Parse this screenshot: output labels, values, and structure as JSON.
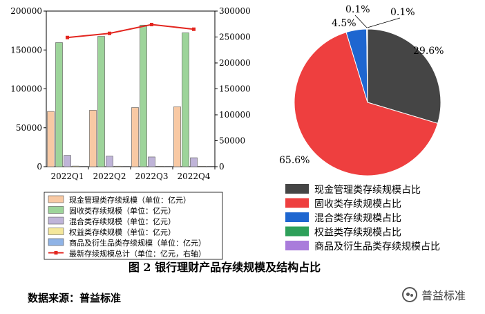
{
  "figure_caption": "图 2   银行理财产品存续规模及结构占比",
  "source_note": "数据来源：普益标准",
  "watermark": "普益标准",
  "chart_data": [
    {
      "type": "bar",
      "categories": [
        "2022Q1",
        "2022Q2",
        "2022Q3",
        "2022Q4"
      ],
      "ylim": [
        0,
        200000
      ],
      "yticks": [
        0,
        50000,
        100000,
        150000,
        200000
      ],
      "y2lim": [
        0,
        300000
      ],
      "y2ticks": [
        0,
        50000,
        100000,
        150000,
        200000,
        250000,
        300000
      ],
      "series": [
        {
          "name": "现金管理类存续规模（单位：亿元）",
          "values": [
            71000,
            72500,
            76000,
            77000
          ],
          "color": "#F8C9A4"
        },
        {
          "name": "固收类存续规模（单位：亿元）",
          "values": [
            159500,
            167500,
            182000,
            172000
          ],
          "color": "#9DD49A"
        },
        {
          "name": "混合类存续规模（单位：亿元）",
          "values": [
            14500,
            13500,
            12500,
            11500
          ],
          "color": "#BFB4D8"
        },
        {
          "name": "权益类存续规模（单位：亿元）",
          "values": [
            800,
            700,
            600,
            600
          ],
          "color": "#F4E79B"
        },
        {
          "name": "商品及衍生品类存续规模（单位：亿元）",
          "values": [
            100,
            100,
            100,
            100
          ],
          "color": "#8FB3E6"
        }
      ],
      "line_series": {
        "name": "最新存续规模总计（单位：亿元，右轴）",
        "values": [
          249000,
          257000,
          274000,
          265000
        ],
        "color": "#E3261F",
        "axis": "right"
      },
      "legend_position": "bottom"
    },
    {
      "type": "pie",
      "slices": [
        {
          "label": "现金管理类存续规模占比",
          "value": 29.6,
          "display": "29.6%",
          "color": "#454545"
        },
        {
          "label": "固收类存续规模占比",
          "value": 65.6,
          "display": "65.6%",
          "color": "#EE3F3F"
        },
        {
          "label": "混合类存续规模占比",
          "value": 4.5,
          "display": "4.5%",
          "color": "#1E66D0"
        },
        {
          "label": "权益类存续规模占比",
          "value": 0.1,
          "display": "0.1%",
          "color": "#2EA05A"
        },
        {
          "label": "商品及衍生品类存续规模占比",
          "value": 0.1,
          "display": "0.1%",
          "color": "#A97CDB"
        }
      ],
      "legend_position": "bottom"
    }
  ]
}
